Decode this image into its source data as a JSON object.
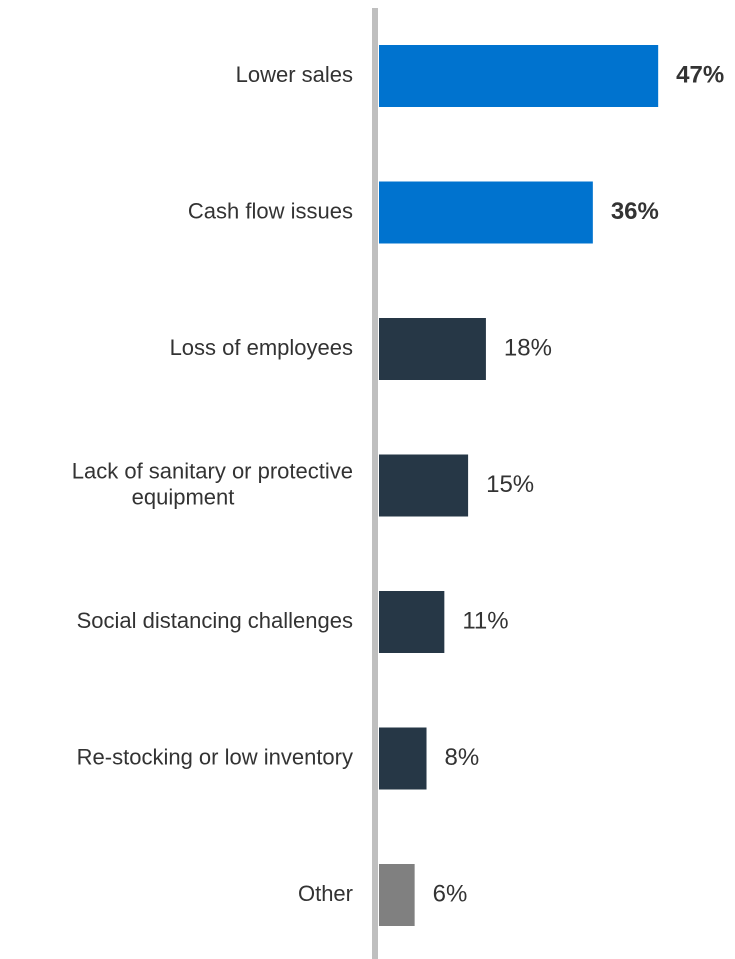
{
  "chart_data": {
    "type": "bar",
    "orientation": "horizontal",
    "title": "",
    "xlabel": "",
    "ylabel": "",
    "xlim": [
      0,
      50
    ],
    "grid": false,
    "legend": "none",
    "categories": [
      [
        "Lower sales"
      ],
      [
        "Cash flow issues"
      ],
      [
        "Loss of employees"
      ],
      [
        "Lack of sanitary or protective",
        "equipment"
      ],
      [
        "Social distancing challenges"
      ],
      [
        "Re-stocking or low inventory"
      ],
      [
        "Other"
      ]
    ],
    "values": [
      47,
      36,
      18,
      15,
      11,
      8,
      6
    ],
    "value_labels": [
      "47%",
      "36%",
      "18%",
      "15%",
      "11%",
      "8%",
      "6%"
    ],
    "highlighted": [
      true,
      true,
      false,
      false,
      false,
      false,
      false
    ],
    "colors": {
      "highlight": "#0073CF",
      "default": "#263746",
      "other": "#808080",
      "axis": "#BFBFBF",
      "text": "#333333"
    }
  }
}
